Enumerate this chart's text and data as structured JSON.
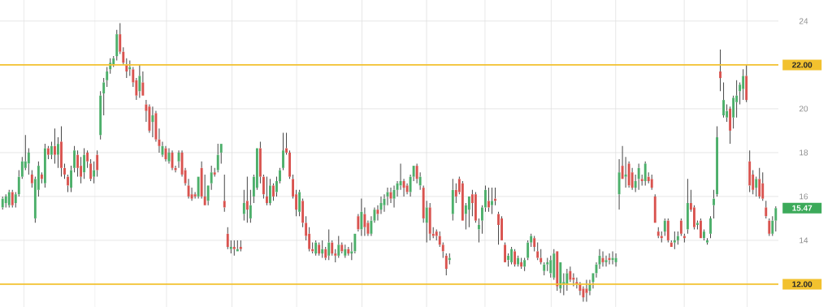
{
  "chart_data": {
    "type": "candlestick",
    "categories": [
      null,
      null,
      null,
      null,
      null,
      null,
      null,
      null,
      null,
      null,
      null,
      null,
      null,
      null,
      null,
      null,
      null,
      null,
      null,
      null,
      null,
      null,
      null,
      null,
      null,
      null,
      null,
      null,
      null,
      null,
      null,
      null,
      null,
      null,
      null,
      null,
      null,
      null,
      null,
      null,
      null,
      null,
      null,
      null,
      null,
      null,
      null,
      null,
      null,
      null,
      null,
      null,
      null,
      null,
      null,
      null,
      null,
      null,
      null,
      null,
      null,
      null,
      null,
      null,
      null,
      null,
      null,
      null,
      null,
      null,
      null,
      null,
      null,
      null,
      null,
      null,
      null,
      null,
      null,
      null,
      null,
      null,
      null,
      null,
      null,
      null,
      null,
      null,
      null,
      null,
      null,
      null,
      null,
      null,
      null,
      null,
      null,
      null,
      null,
      null,
      null,
      null,
      null,
      null,
      null,
      null,
      null,
      null,
      null,
      null,
      null,
      null,
      null,
      null,
      null,
      null,
      null,
      null,
      null,
      null,
      null,
      null,
      null,
      null,
      null,
      null,
      null,
      null,
      null,
      null,
      null,
      null,
      null,
      null,
      null,
      null,
      null,
      null,
      null,
      null,
      null,
      null,
      null,
      null,
      null,
      null,
      null,
      null,
      null,
      null,
      null,
      null,
      null,
      null,
      null,
      null,
      null,
      null,
      null,
      null,
      null,
      null,
      null,
      null,
      null,
      null,
      null,
      null,
      null,
      null,
      null,
      null,
      null,
      null,
      null,
      null,
      null,
      null,
      null,
      null,
      null,
      null,
      null,
      null,
      null,
      null,
      null,
      null,
      null,
      null,
      null,
      null,
      null,
      null,
      null,
      null,
      null,
      null,
      null,
      null,
      null,
      null,
      null,
      null,
      null,
      null,
      null,
      null,
      null,
      null,
      null,
      null,
      null,
      null,
      null,
      null,
      null,
      null,
      null,
      null,
      null,
      null,
      null,
      null,
      null,
      null,
      null,
      null,
      null,
      null,
      null,
      null,
      null,
      null,
      null,
      null,
      null,
      null
    ],
    "ohlc": [
      [
        15.5,
        16.0,
        15.4,
        15.9
      ],
      [
        15.7,
        16.1,
        15.5,
        16.0
      ],
      [
        15.6,
        16.3,
        15.5,
        16.2
      ],
      [
        16.2,
        16.3,
        15.5,
        15.6
      ],
      [
        15.7,
        16.2,
        15.5,
        16.1
      ],
      [
        16.1,
        17.2,
        16.0,
        16.9
      ],
      [
        16.9,
        17.8,
        16.8,
        17.6
      ],
      [
        17.3,
        18.8,
        17.2,
        17.6
      ],
      [
        17.5,
        18.2,
        17.0,
        18.0
      ],
      [
        17.0,
        17.2,
        16.4,
        16.6
      ],
      [
        15.0,
        16.9,
        14.8,
        16.8
      ],
      [
        16.3,
        17.6,
        16.0,
        17.4
      ],
      [
        17.0,
        17.1,
        16.6,
        16.8
      ],
      [
        16.6,
        18.4,
        16.4,
        18.2
      ],
      [
        18.2,
        18.3,
        17.7,
        17.9
      ],
      [
        17.9,
        18.5,
        17.7,
        18.3
      ],
      [
        18.3,
        19.1,
        17.5,
        17.9
      ],
      [
        17.9,
        18.7,
        17.3,
        18.4
      ],
      [
        18.5,
        19.2,
        16.9,
        17.3
      ],
      [
        17.3,
        17.5,
        16.8,
        17.0
      ],
      [
        16.9,
        17.0,
        16.2,
        16.5
      ],
      [
        16.4,
        17.4,
        16.2,
        17.2
      ],
      [
        17.3,
        18.3,
        17.1,
        18.1
      ],
      [
        17.9,
        18.1,
        16.9,
        17.3
      ],
      [
        17.4,
        17.8,
        16.6,
        16.9
      ],
      [
        17.1,
        18.2,
        16.8,
        17.9
      ],
      [
        18.0,
        18.1,
        17.3,
        17.6
      ],
      [
        17.5,
        17.7,
        16.7,
        16.8
      ],
      [
        16.9,
        17.6,
        16.6,
        17.2
      ],
      [
        17.9,
        18.1,
        16.9,
        17.2
      ],
      [
        18.8,
        20.8,
        18.6,
        20.6
      ],
      [
        20.7,
        21.4,
        19.7,
        21.2
      ],
      [
        21.3,
        21.9,
        21.0,
        21.7
      ],
      [
        21.8,
        22.3,
        21.6,
        22.1
      ],
      [
        22.0,
        22.4,
        21.9,
        22.3
      ],
      [
        22.4,
        23.6,
        22.2,
        23.4
      ],
      [
        23.4,
        23.9,
        22.5,
        22.6
      ],
      [
        22.6,
        22.8,
        22.0,
        22.1
      ],
      [
        22.0,
        22.3,
        21.4,
        21.7
      ],
      [
        21.8,
        22.2,
        21.5,
        21.9
      ],
      [
        21.8,
        21.9,
        21.0,
        21.2
      ],
      [
        21.3,
        21.4,
        20.4,
        20.6
      ],
      [
        20.8,
        22.0,
        20.5,
        21.5
      ],
      [
        21.2,
        21.7,
        20.6,
        20.6
      ],
      [
        20.2,
        20.4,
        19.4,
        19.9
      ],
      [
        20.1,
        20.2,
        18.9,
        19.0
      ],
      [
        19.4,
        20.1,
        18.7,
        19.7
      ],
      [
        19.8,
        19.9,
        18.5,
        18.6
      ],
      [
        18.6,
        19.1,
        18.0,
        18.3
      ],
      [
        17.9,
        18.5,
        17.8,
        18.3
      ],
      [
        18.2,
        18.3,
        17.6,
        17.7
      ],
      [
        17.6,
        18.2,
        17.5,
        18.0
      ],
      [
        18.0,
        18.1,
        17.2,
        17.3
      ],
      [
        17.3,
        17.4,
        17.1,
        17.2
      ],
      [
        17.6,
        18.1,
        17.3,
        18.0
      ],
      [
        18.0,
        18.1,
        16.9,
        17.0
      ],
      [
        17.2,
        17.3,
        16.5,
        16.6
      ],
      [
        16.5,
        16.8,
        15.9,
        16.0
      ],
      [
        16.1,
        16.4,
        15.8,
        15.9
      ],
      [
        16.1,
        16.2,
        15.9,
        16.0
      ],
      [
        16.0,
        16.9,
        15.9,
        16.9
      ],
      [
        17.3,
        17.6,
        15.9,
        16.0
      ],
      [
        16.0,
        17.0,
        15.6,
        15.6
      ],
      [
        15.8,
        16.5,
        15.6,
        16.5
      ],
      [
        16.6,
        17.4,
        16.3,
        17.1
      ],
      [
        17.1,
        17.3,
        16.9,
        17.0
      ],
      [
        17.2,
        18.4,
        17.1,
        17.9
      ],
      [
        18.0,
        18.4,
        17.5,
        18.4
      ],
      [
        15.8,
        17.0,
        15.3,
        15.5
      ],
      [
        14.3,
        14.6,
        13.6,
        13.7
      ],
      [
        13.6,
        14.0,
        13.4,
        13.7
      ],
      [
        13.7,
        14.0,
        13.3,
        13.6
      ],
      [
        13.5,
        14.0,
        13.5,
        13.6
      ],
      [
        13.7,
        14.0,
        13.5,
        13.6
      ],
      [
        15.2,
        16.3,
        14.9,
        15.7
      ],
      [
        15.8,
        16.9,
        14.8,
        15.4
      ],
      [
        15.0,
        16.3,
        14.8,
        15.6
      ],
      [
        16.0,
        17.0,
        15.7,
        16.9
      ],
      [
        16.4,
        18.2,
        16.3,
        18.2
      ],
      [
        18.2,
        18.5,
        16.6,
        16.9
      ],
      [
        16.9,
        17.0,
        15.9,
        16.1
      ],
      [
        16.0,
        16.9,
        15.6,
        15.7
      ],
      [
        15.7,
        16.8,
        15.6,
        16.5
      ],
      [
        16.5,
        16.6,
        15.8,
        16.0
      ],
      [
        16.2,
        16.9,
        16.0,
        16.7
      ],
      [
        16.7,
        17.3,
        16.6,
        17.2
      ],
      [
        17.3,
        18.9,
        17.2,
        18.1
      ],
      [
        18.2,
        18.9,
        17.9,
        18.0
      ],
      [
        18.0,
        18.1,
        16.8,
        16.9
      ],
      [
        16.8,
        17.0,
        15.9,
        16.0
      ],
      [
        16.1,
        16.3,
        15.1,
        15.4
      ],
      [
        15.3,
        16.3,
        15.1,
        16.2
      ],
      [
        15.8,
        15.9,
        14.6,
        14.8
      ],
      [
        14.8,
        15.1,
        14.0,
        14.2
      ],
      [
        14.3,
        14.6,
        13.5,
        13.6
      ],
      [
        13.6,
        13.9,
        13.4,
        13.5
      ],
      [
        13.4,
        14.0,
        13.3,
        13.9
      ],
      [
        13.8,
        13.9,
        13.3,
        13.4
      ],
      [
        13.4,
        14.0,
        13.2,
        13.6
      ],
      [
        13.6,
        13.7,
        13.1,
        13.2
      ],
      [
        13.3,
        14.5,
        13.1,
        13.9
      ],
      [
        13.9,
        14.0,
        13.3,
        13.4
      ],
      [
        13.4,
        13.6,
        13.0,
        13.3
      ],
      [
        13.3,
        14.2,
        13.2,
        13.8
      ],
      [
        13.8,
        13.9,
        13.4,
        13.5
      ],
      [
        13.3,
        13.8,
        13.2,
        13.6
      ],
      [
        13.6,
        13.7,
        13.3,
        13.4
      ],
      [
        13.4,
        13.9,
        13.1,
        13.5
      ],
      [
        13.5,
        14.3,
        13.4,
        14.3
      ],
      [
        15.1,
        15.2,
        14.4,
        14.5
      ],
      [
        14.5,
        15.9,
        14.2,
        15.3
      ],
      [
        15.2,
        15.5,
        14.2,
        14.6
      ],
      [
        14.8,
        14.9,
        14.2,
        14.3
      ],
      [
        14.3,
        15.1,
        14.2,
        14.9
      ],
      [
        14.9,
        15.5,
        14.8,
        15.4
      ],
      [
        15.4,
        15.6,
        14.9,
        15.2
      ],
      [
        15.4,
        16.0,
        15.2,
        15.7
      ],
      [
        15.6,
        16.1,
        15.3,
        15.9
      ],
      [
        16.0,
        16.4,
        15.6,
        16.2
      ],
      [
        16.2,
        16.4,
        15.7,
        15.9
      ],
      [
        15.9,
        16.5,
        15.5,
        16.3
      ],
      [
        16.3,
        16.7,
        16.0,
        16.6
      ],
      [
        16.5,
        17.5,
        16.3,
        16.7
      ],
      [
        16.7,
        16.8,
        16.0,
        16.4
      ],
      [
        16.5,
        16.6,
        16.1,
        16.2
      ],
      [
        16.2,
        17.0,
        16.0,
        16.9
      ],
      [
        16.9,
        17.4,
        16.7,
        17.4
      ],
      [
        17.4,
        17.5,
        16.6,
        16.8
      ],
      [
        16.5,
        17.1,
        16.3,
        16.9
      ],
      [
        16.4,
        16.5,
        14.8,
        15.0
      ],
      [
        14.8,
        15.8,
        13.9,
        15.5
      ],
      [
        15.5,
        15.7,
        14.0,
        14.3
      ],
      [
        14.3,
        14.6,
        14.1,
        14.2
      ],
      [
        14.4,
        14.5,
        14.0,
        14.2
      ],
      [
        14.2,
        14.4,
        13.7,
        13.8
      ],
      [
        13.8,
        13.9,
        13.2,
        13.5
      ],
      [
        13.3,
        13.4,
        12.4,
        12.7
      ],
      [
        13.1,
        13.4,
        12.9,
        13.2
      ],
      [
        15.2,
        16.8,
        14.9,
        16.3
      ],
      [
        16.3,
        16.6,
        15.7,
        16.0
      ],
      [
        16.8,
        16.9,
        16.1,
        16.2
      ],
      [
        16.6,
        16.7,
        14.9,
        14.9
      ],
      [
        15.2,
        15.7,
        14.5,
        15.6
      ],
      [
        15.4,
        16.0,
        14.6,
        16.0
      ],
      [
        16.1,
        16.3,
        15.1,
        15.7
      ],
      [
        16.1,
        16.2,
        14.8,
        14.9
      ],
      [
        14.5,
        15.0,
        13.9,
        14.7
      ],
      [
        14.9,
        15.6,
        14.3,
        15.5
      ],
      [
        15.5,
        16.5,
        15.3,
        16.3
      ],
      [
        15.8,
        16.4,
        15.3,
        15.5
      ],
      [
        15.6,
        16.4,
        15.2,
        15.8
      ],
      [
        15.9,
        16.4,
        15.6,
        15.8
      ],
      [
        15.2,
        15.3,
        13.8,
        14.7
      ],
      [
        15.0,
        15.1,
        14.0,
        14.0
      ],
      [
        13.8,
        13.9,
        13.0,
        13.0
      ],
      [
        13.1,
        13.4,
        12.8,
        13.3
      ],
      [
        13.0,
        13.7,
        12.9,
        13.6
      ],
      [
        13.5,
        13.6,
        12.8,
        12.9
      ],
      [
        12.9,
        13.3,
        12.8,
        13.2
      ],
      [
        13.0,
        13.2,
        12.7,
        12.8
      ],
      [
        12.8,
        13.2,
        12.6,
        13.1
      ],
      [
        13.2,
        14.0,
        13.1,
        13.9
      ],
      [
        13.9,
        14.3,
        13.7,
        14.2
      ],
      [
        14.1,
        14.2,
        13.5,
        13.7
      ],
      [
        13.5,
        13.9,
        13.1,
        13.2
      ],
      [
        13.2,
        13.6,
        12.9,
        13.0
      ],
      [
        12.6,
        13.0,
        12.4,
        12.9
      ],
      [
        12.9,
        13.2,
        12.6,
        13.0
      ],
      [
        12.5,
        13.3,
        12.3,
        13.1
      ],
      [
        12.3,
        13.6,
        12.2,
        13.4
      ],
      [
        13.5,
        13.5,
        11.7,
        11.9
      ],
      [
        11.8,
        13.0,
        11.6,
        13.0
      ],
      [
        12.0,
        12.5,
        11.5,
        12.1
      ],
      [
        12.0,
        12.7,
        11.7,
        12.5
      ],
      [
        12.6,
        12.8,
        12.1,
        12.2
      ],
      [
        12.3,
        12.5,
        11.9,
        12.2
      ],
      [
        12.1,
        12.3,
        11.8,
        12.0
      ],
      [
        12.0,
        12.1,
        11.5,
        11.7
      ],
      [
        11.8,
        11.9,
        11.2,
        11.4
      ],
      [
        11.8,
        12.2,
        11.2,
        11.6
      ],
      [
        11.7,
        12.2,
        11.5,
        12.0
      ],
      [
        12.1,
        12.5,
        11.8,
        12.5
      ],
      [
        12.5,
        13.0,
        12.3,
        12.9
      ],
      [
        12.9,
        13.6,
        12.7,
        13.3
      ],
      [
        13.2,
        13.5,
        12.8,
        13.0
      ],
      [
        13.0,
        13.3,
        12.8,
        13.1
      ],
      [
        13.2,
        13.4,
        12.9,
        13.1
      ],
      [
        13.1,
        13.5,
        12.9,
        13.2
      ],
      [
        13.0,
        13.4,
        12.8,
        13.2
      ],
      [
        16.1,
        17.7,
        15.4,
        17.1
      ],
      [
        17.4,
        18.3,
        16.8,
        16.8
      ],
      [
        16.9,
        17.8,
        16.4,
        17.0
      ],
      [
        17.5,
        17.6,
        16.4,
        16.5
      ],
      [
        17.1,
        17.3,
        16.3,
        16.4
      ],
      [
        16.4,
        17.0,
        16.2,
        16.7
      ],
      [
        16.8,
        17.5,
        16.3,
        17.3
      ],
      [
        16.8,
        17.0,
        16.5,
        16.7
      ],
      [
        16.7,
        17.6,
        16.5,
        17.5
      ],
      [
        16.9,
        17.1,
        16.6,
        16.7
      ],
      [
        16.8,
        17.0,
        16.3,
        16.4
      ],
      [
        16.0,
        16.1,
        14.8,
        14.8
      ],
      [
        14.4,
        14.6,
        14.1,
        14.2
      ],
      [
        14.2,
        14.4,
        13.9,
        14.1
      ],
      [
        14.4,
        15.0,
        14.2,
        14.9
      ],
      [
        14.9,
        15.0,
        13.9,
        14.0
      ],
      [
        13.9,
        14.0,
        13.7,
        13.7
      ],
      [
        13.9,
        14.4,
        13.6,
        14.0
      ],
      [
        14.0,
        14.4,
        13.8,
        14.2
      ],
      [
        14.9,
        15.0,
        14.2,
        14.3
      ],
      [
        14.2,
        14.3,
        13.9,
        14.1
      ],
      [
        14.5,
        16.8,
        14.3,
        15.7
      ],
      [
        15.7,
        16.3,
        15.3,
        15.4
      ],
      [
        15.5,
        15.6,
        14.5,
        14.6
      ],
      [
        14.7,
        14.9,
        14.5,
        14.8
      ],
      [
        14.9,
        15.0,
        14.1,
        14.1
      ],
      [
        14.1,
        14.5,
        14.0,
        14.4
      ],
      [
        13.9,
        14.1,
        13.8,
        14.0
      ],
      [
        14.3,
        15.1,
        14.1,
        15.0
      ],
      [
        15.6,
        16.3,
        15.0,
        15.9
      ],
      [
        16.1,
        19.2,
        16.0,
        18.7
      ],
      [
        21.7,
        22.7,
        20.8,
        21.4
      ],
      [
        19.7,
        21.2,
        19.6,
        20.4
      ],
      [
        19.6,
        20.2,
        19.4,
        19.9
      ],
      [
        20.0,
        20.1,
        18.4,
        19.0
      ],
      [
        19.6,
        20.6,
        19.1,
        20.5
      ],
      [
        20.3,
        21.3,
        19.6,
        20.6
      ],
      [
        20.8,
        21.2,
        20.2,
        21.1
      ],
      [
        20.9,
        21.8,
        20.4,
        21.5
      ],
      [
        21.5,
        22.0,
        20.3,
        20.4
      ],
      [
        17.6,
        18.1,
        16.2,
        16.5
      ],
      [
        17.0,
        17.2,
        16.1,
        16.3
      ],
      [
        16.4,
        16.9,
        16.0,
        16.8
      ],
      [
        16.8,
        17.3,
        15.9,
        16.0
      ],
      [
        16.6,
        17.1,
        15.8,
        15.9
      ],
      [
        15.5,
        15.8,
        15.0,
        15.1
      ],
      [
        14.9,
        15.0,
        14.2,
        14.3
      ],
      [
        14.3,
        15.1,
        14.2,
        14.9
      ],
      [
        14.9,
        15.55,
        14.4,
        15.47
      ]
    ],
    "ylim": [
      10.96,
      24.96
    ],
    "yticks": [
      14,
      16,
      18,
      20,
      24
    ],
    "grid": true,
    "ref_lines": [
      {
        "axis": "y",
        "value": 22,
        "label": "22.00",
        "color": "#f2c12e"
      },
      {
        "axis": "y",
        "value": 12,
        "label": "12.00",
        "color": "#f2c12e"
      }
    ],
    "annotations": [
      "15.47"
    ]
  }
}
